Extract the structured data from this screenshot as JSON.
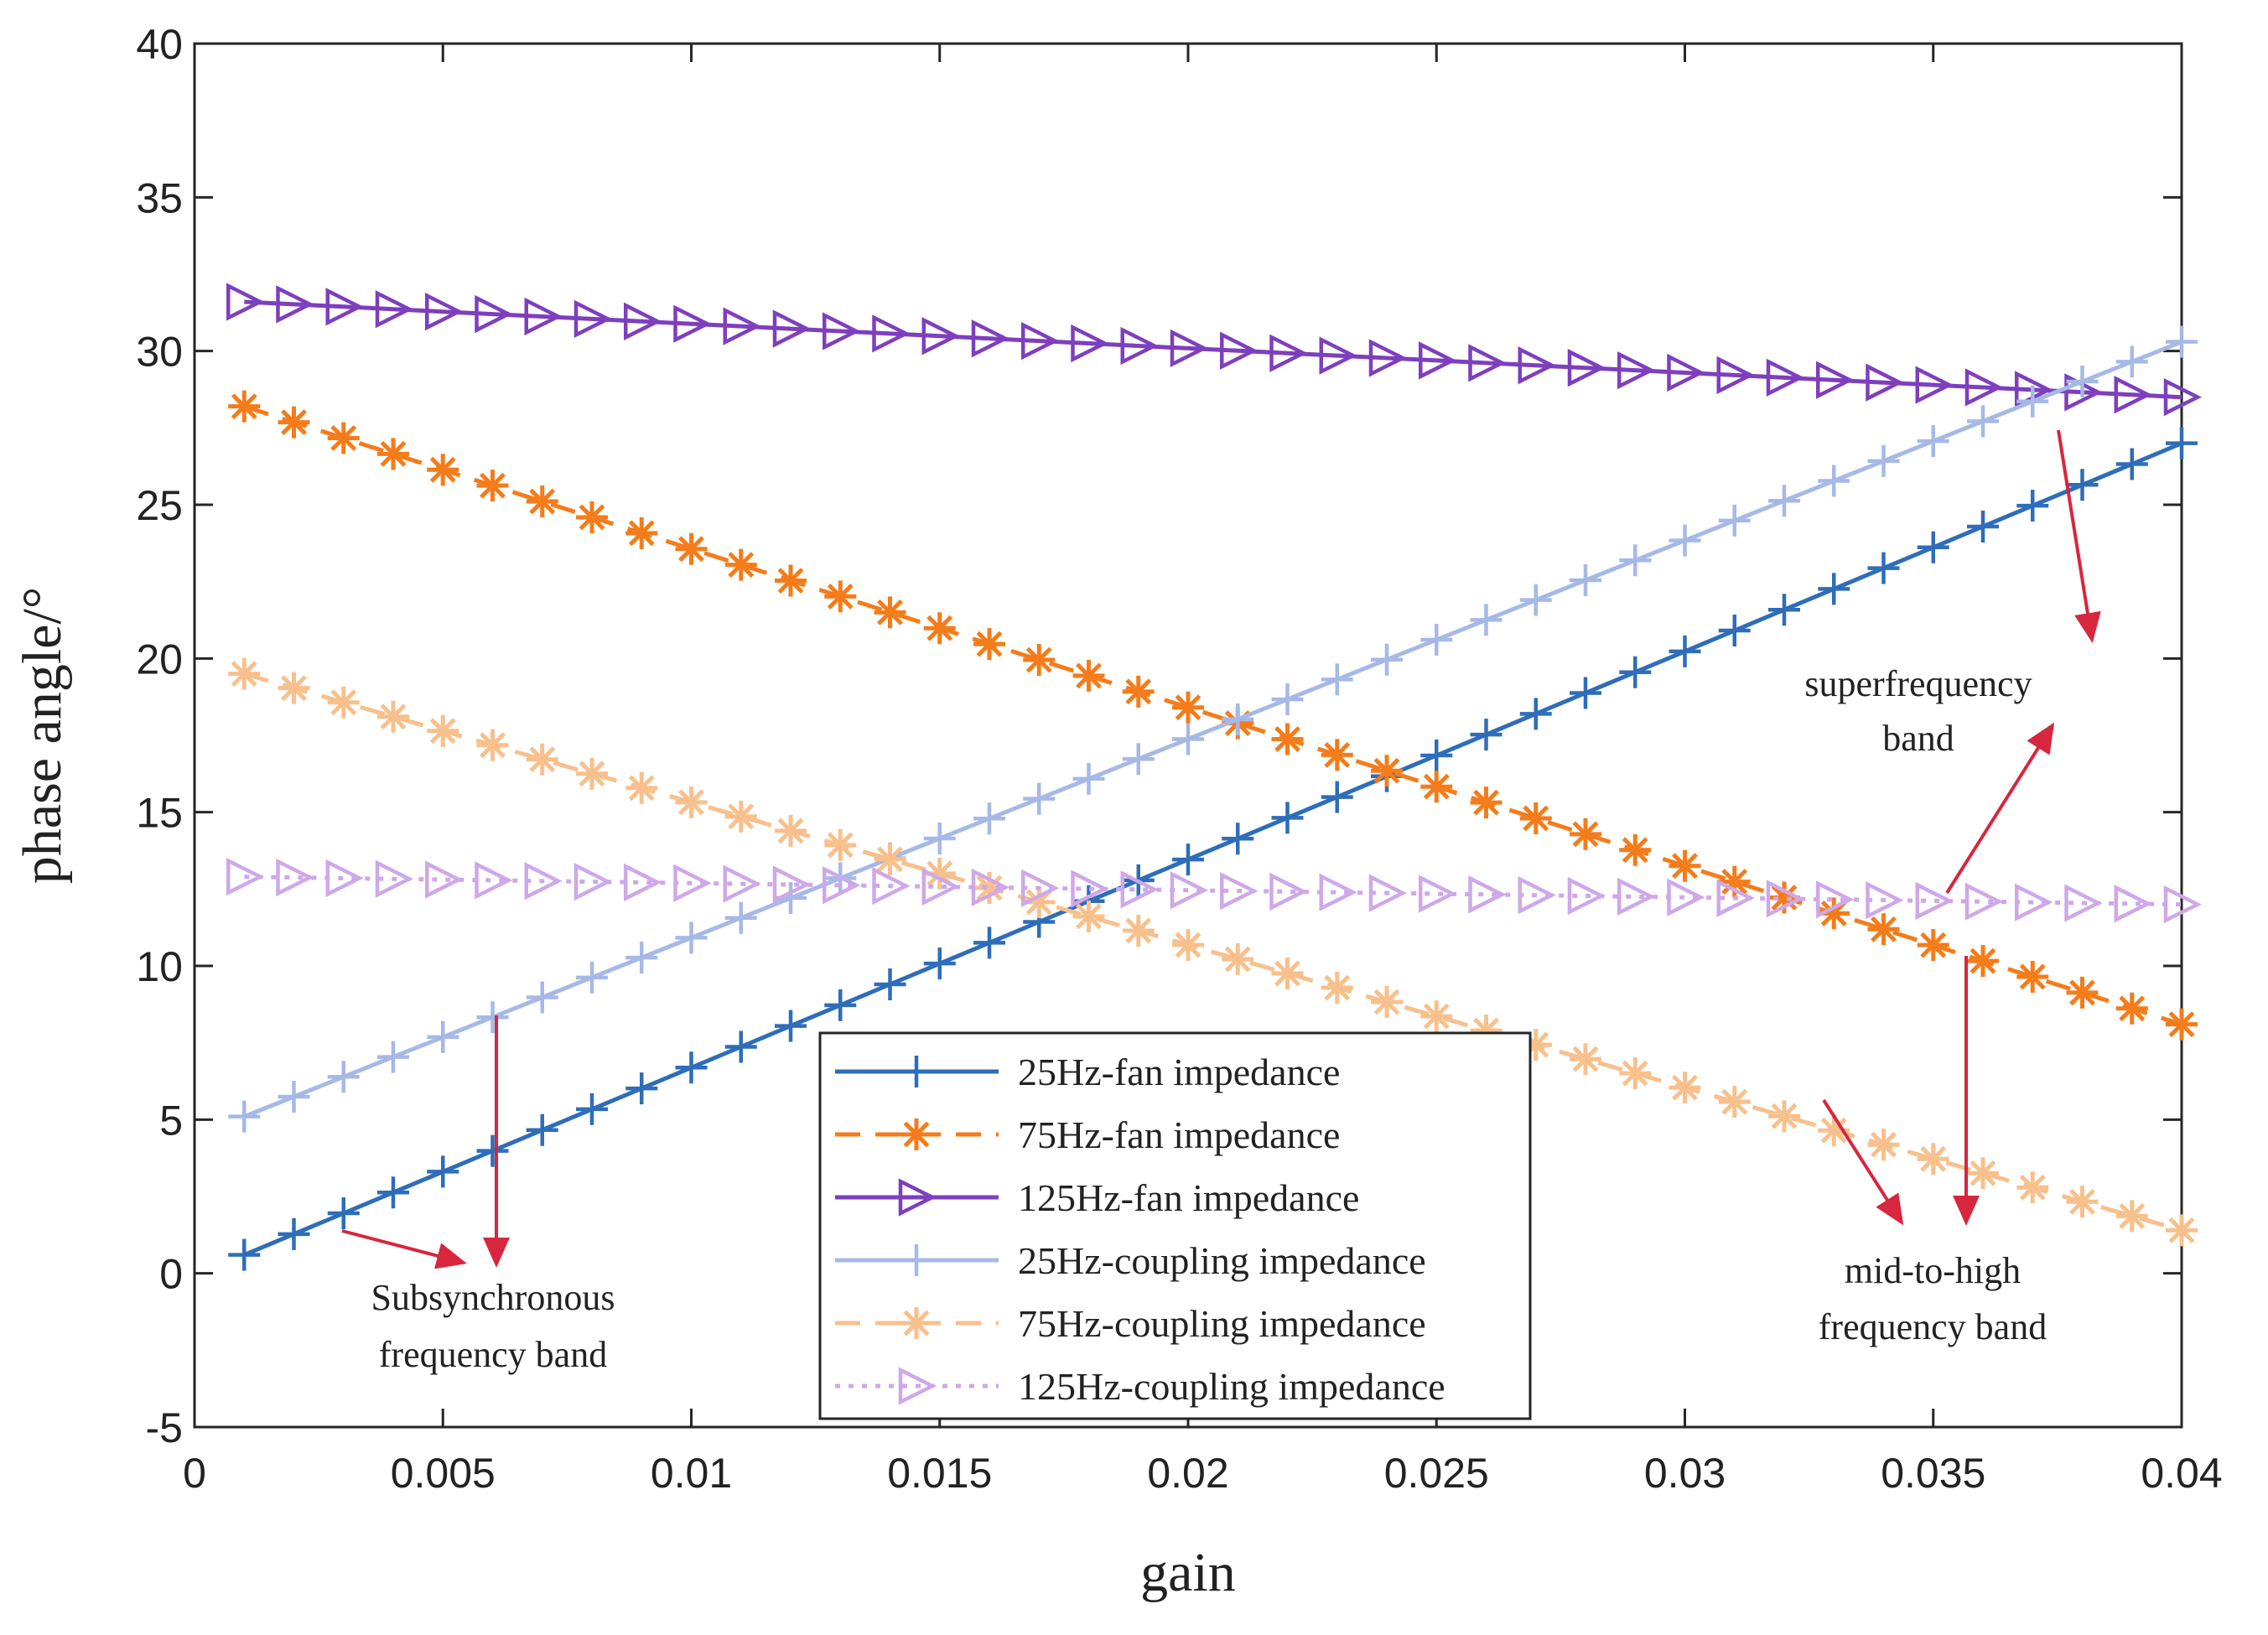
{
  "chart_data": {
    "type": "line",
    "title": "",
    "xlabel": "gain",
    "ylabel": "phase angle/°",
    "xlim": [
      0,
      0.04
    ],
    "ylim": [
      -5,
      40
    ],
    "xticks": [
      0,
      0.005,
      0.01,
      0.015,
      0.02,
      0.025,
      0.03,
      0.035,
      0.04
    ],
    "xtick_labels": [
      "0",
      "0.005",
      "0.01",
      "0.015",
      "0.02",
      "0.025",
      "0.03",
      "0.035",
      "0.04"
    ],
    "yticks": [
      -5,
      0,
      5,
      10,
      15,
      20,
      25,
      30,
      35,
      40
    ],
    "ytick_labels": [
      "-5",
      "0",
      "5",
      "10",
      "15",
      "20",
      "25",
      "30",
      "35",
      "40"
    ],
    "grid": false,
    "legend_position": "bottom-center",
    "x_range": {
      "start": 0.001,
      "end": 0.04,
      "step": 0.001
    },
    "series": [
      {
        "name": "25Hz-fan impedance",
        "color": "#2E6DB9",
        "line_style": "solid",
        "marker": "plus",
        "y_start": 0.6,
        "y_end": 27.0
      },
      {
        "name": "75Hz-fan impedance",
        "color": "#F47C1A",
        "line_style": "dashed",
        "marker": "asterisk",
        "y_start": 28.2,
        "y_end": 8.1
      },
      {
        "name": "125Hz-fan impedance",
        "color": "#7E3FBE",
        "line_style": "solid",
        "marker": "triangle-right",
        "y_start": 31.6,
        "y_end": 28.5
      },
      {
        "name": "25Hz-coupling impedance",
        "color": "#A6B9E6",
        "line_style": "solid",
        "marker": "plus",
        "y_start": 5.1,
        "y_end": 30.3
      },
      {
        "name": "75Hz-coupling impedance",
        "color": "#F8C08C",
        "line_style": "dashed",
        "marker": "asterisk",
        "y_start": 19.5,
        "y_end": 1.4
      },
      {
        "name": "125Hz-coupling impedance",
        "color": "#CEA8E8",
        "line_style": "dotted",
        "marker": "triangle-right",
        "y_start": 12.9,
        "y_end": 12.0
      }
    ],
    "annotations": [
      {
        "id": "sub",
        "lines": [
          "Subsynchronous",
          "frequency band"
        ],
        "color": "#D7263D"
      },
      {
        "id": "super",
        "lines": [
          "superfrequency",
          "band"
        ],
        "color": "#D7263D"
      },
      {
        "id": "mid",
        "lines": [
          "mid-to-high",
          "frequency band"
        ],
        "color": "#D7263D"
      }
    ]
  }
}
